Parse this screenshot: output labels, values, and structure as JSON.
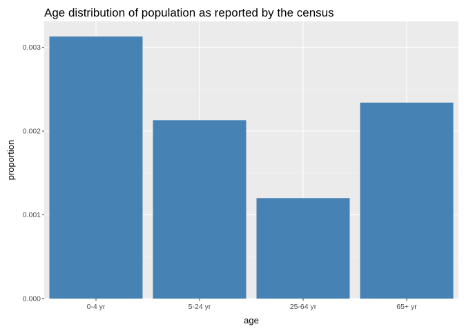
{
  "chart_data": {
    "type": "bar",
    "title": "Age distribution of population as reported by the census",
    "xlabel": "age",
    "ylabel": "proportion",
    "categories": [
      "0-4 yr",
      "5-24 yr",
      "25-64 yr",
      "65+ yr"
    ],
    "values": [
      0.00313,
      0.00213,
      0.0012,
      0.00234
    ],
    "ylim": [
      0,
      0.00331
    ],
    "yticks": [
      0.0,
      0.001,
      0.002,
      0.003
    ],
    "ytick_labels": [
      "0.000",
      "0.001",
      "0.002",
      "0.003"
    ],
    "grid": true,
    "legend": "none",
    "colors": {
      "bar": "#4682b4",
      "panel": "#ebebeb",
      "grid_major": "#ffffff",
      "grid_minor": "#f5f5f5",
      "tick": "#333333"
    }
  }
}
